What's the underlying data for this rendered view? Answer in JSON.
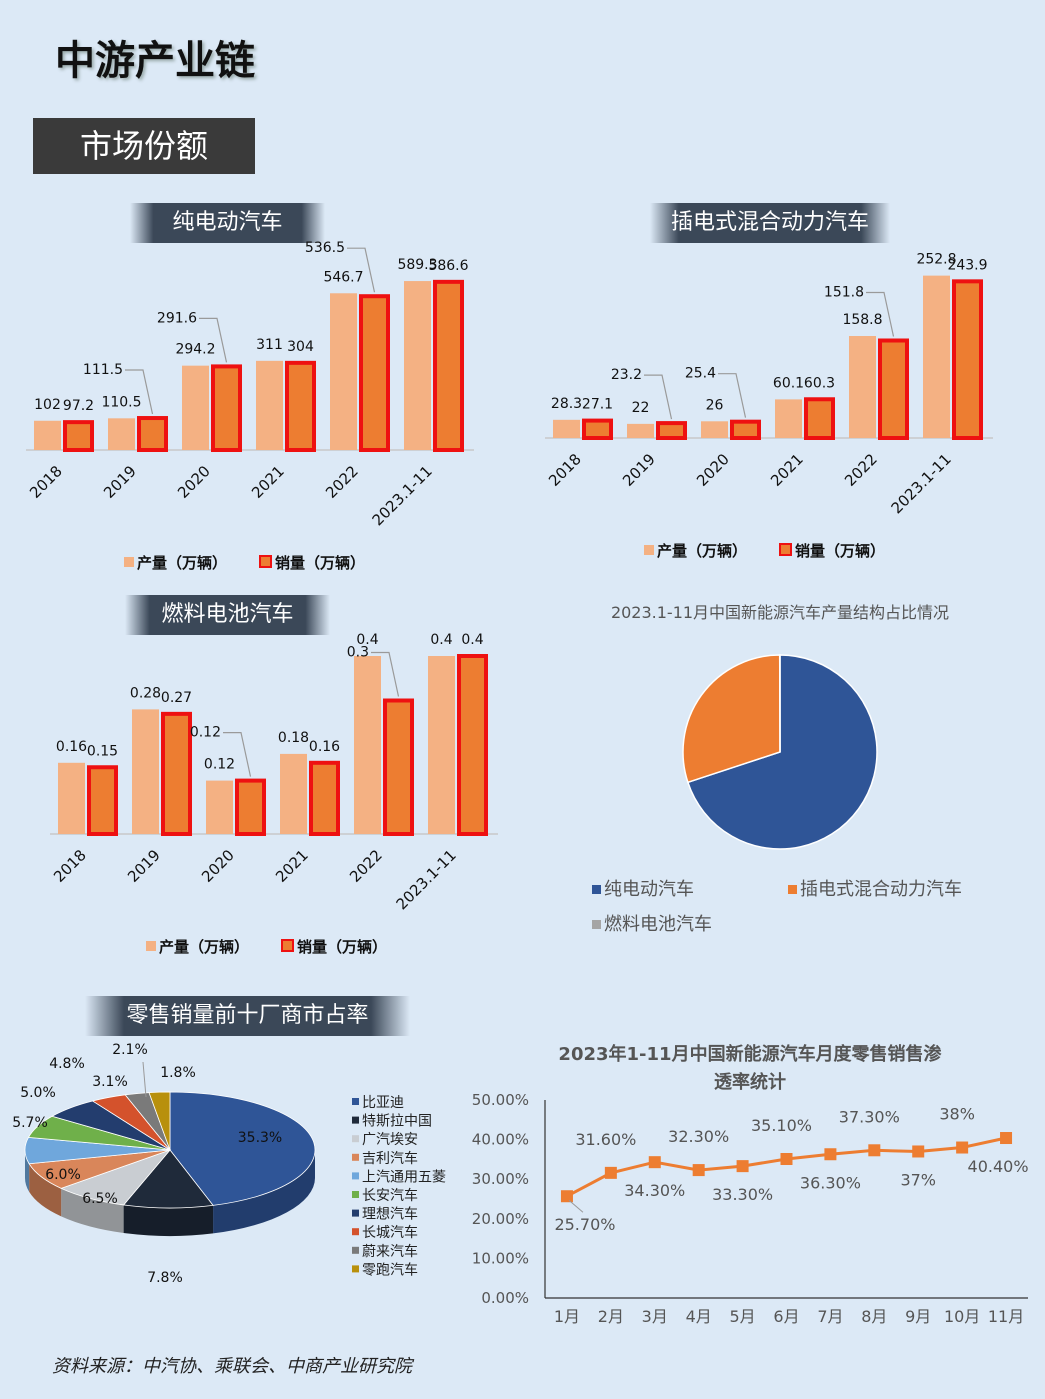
{
  "page": {
    "title": "中游产业链",
    "section": "市场份额",
    "source": "资料来源：中汽协、乘联会、中商产业研究院"
  },
  "colors": {
    "production": "#f4b183",
    "sales_fill": "#ed7d31",
    "sales_border": "#ee1111",
    "bev": "#2f5597",
    "phev": "#ed7d31",
    "fcev": "#a5a5a5",
    "line": "#ed7d31"
  },
  "chart_data": [
    {
      "id": "bev",
      "type": "bar",
      "banner": "纯电动汽车",
      "categories": [
        "2018",
        "2019",
        "2020",
        "2021",
        "2022",
        "2023.1-11"
      ],
      "series": [
        {
          "name": "产量（万辆）",
          "values": [
            102,
            110.5,
            294.2,
            311,
            546.7,
            589.3
          ]
        },
        {
          "name": "销量（万辆）",
          "values": [
            97.2,
            111.5,
            291.6,
            304,
            536.5,
            586.6
          ]
        }
      ],
      "labels": {
        "production": [
          "102",
          "110.5",
          "294.2",
          "311",
          "546.7",
          "589.3"
        ],
        "sales": [
          "97.2",
          "111.5",
          "291.6",
          "304",
          "536.5",
          "586.6"
        ]
      },
      "ylim": [
        0,
        600
      ],
      "legend_position": "bottom"
    },
    {
      "id": "phev",
      "type": "bar",
      "banner": "插电式混合动力汽车",
      "categories": [
        "2018",
        "2019",
        "2020",
        "2021",
        "2022",
        "2023.1-11"
      ],
      "series": [
        {
          "name": "产量（万辆）",
          "values": [
            28.3,
            22,
            26,
            60.1,
            158.8,
            252.8
          ]
        },
        {
          "name": "销量（万辆）",
          "values": [
            27.1,
            23.2,
            25.4,
            60.3,
            151.8,
            243.9
          ]
        }
      ],
      "labels": {
        "production": [
          "28.3",
          "22",
          "26",
          "60.1",
          "158.8",
          "252.8"
        ],
        "sales": [
          "27.1",
          "23.2",
          "25.4",
          "60.3",
          "151.8",
          "243.9"
        ]
      },
      "ylim": [
        0,
        260
      ],
      "legend_position": "bottom"
    },
    {
      "id": "fcev",
      "type": "bar",
      "banner": "燃料电池汽车",
      "categories": [
        "2018",
        "2019",
        "2020",
        "2021",
        "2022",
        "2023.1-11"
      ],
      "series": [
        {
          "name": "产量（万辆）",
          "values": [
            0.16,
            0.28,
            0.12,
            0.18,
            0.4,
            0.4
          ]
        },
        {
          "name": "销量（万辆）",
          "values": [
            0.15,
            0.27,
            0.12,
            0.16,
            0.3,
            0.4
          ]
        }
      ],
      "labels": {
        "production": [
          "0.16",
          "0.28",
          "0.12",
          "0.18",
          "0.4",
          "0.4"
        ],
        "sales": [
          "0.15",
          "0.27",
          "0.12",
          "0.16",
          "0.3",
          "0.4"
        ]
      },
      "ylim": [
        0,
        0.4
      ],
      "legend_position": "bottom"
    },
    {
      "id": "structure",
      "type": "pie",
      "title": "2023.1-11月中国新能源汽车产量结构占比情况",
      "slices": [
        {
          "name": "纯电动汽车",
          "value": 589.3
        },
        {
          "name": "插电式混合动力汽车",
          "value": 252.8
        },
        {
          "name": "燃料电池汽车",
          "value": 0.4
        }
      ],
      "legend_position": "bottom"
    },
    {
      "id": "top10",
      "type": "pie",
      "banner": "零售销量前十厂商市占率",
      "slices": [
        {
          "name": "比亚迪",
          "value": 35.3,
          "label": "35.3%",
          "color": "#2f5597"
        },
        {
          "name": "特斯拉中国",
          "value": 7.8,
          "label": "7.8%",
          "color": "#1f2a3a"
        },
        {
          "name": "广汽埃安",
          "value": 6.5,
          "label": "6.5%",
          "color": "#c9cdd2"
        },
        {
          "name": "吉利汽车",
          "value": 6.0,
          "label": "6.0%",
          "color": "#d9865a"
        },
        {
          "name": "上汽通用五菱",
          "value": 5.7,
          "label": "5.7%",
          "color": "#6fa7dc"
        },
        {
          "name": "长安汽车",
          "value": 5.0,
          "label": "5.0%",
          "color": "#6fb04a"
        },
        {
          "name": "理想汽车",
          "value": 4.8,
          "label": "4.8%",
          "color": "#233d6e"
        },
        {
          "name": "长城汽车",
          "value": 3.1,
          "label": "3.1%",
          "color": "#d4522c"
        },
        {
          "name": "蔚来汽车",
          "value": 2.1,
          "label": "2.1%",
          "color": "#7a7a7a"
        },
        {
          "name": "零跑汽车",
          "value": 1.8,
          "label": "1.8%",
          "color": "#b8900c"
        }
      ],
      "legend_position": "right"
    },
    {
      "id": "penetration",
      "type": "line",
      "title": "2023年1-11月中国新能源汽车月度零售销售渗透率统计",
      "title_lines": [
        "2023年1-11月中国新能源汽车月度零售销售渗",
        "透率统计"
      ],
      "categories": [
        "1月",
        "2月",
        "3月",
        "4月",
        "5月",
        "6月",
        "7月",
        "8月",
        "9月",
        "10月",
        "11月"
      ],
      "values": [
        25.7,
        31.6,
        34.3,
        32.3,
        33.3,
        35.1,
        36.3,
        37.3,
        37,
        38,
        40.4
      ],
      "value_labels": [
        "25.70%",
        "31.60%",
        "34.30%",
        "32.30%",
        "33.30%",
        "35.10%",
        "36.30%",
        "37.30%",
        "37%",
        "38%",
        "40.40%"
      ],
      "ylim": [
        0,
        50
      ],
      "yticks": [
        "0.00%",
        "10.00%",
        "20.00%",
        "30.00%",
        "40.00%",
        "50.00%"
      ]
    }
  ]
}
